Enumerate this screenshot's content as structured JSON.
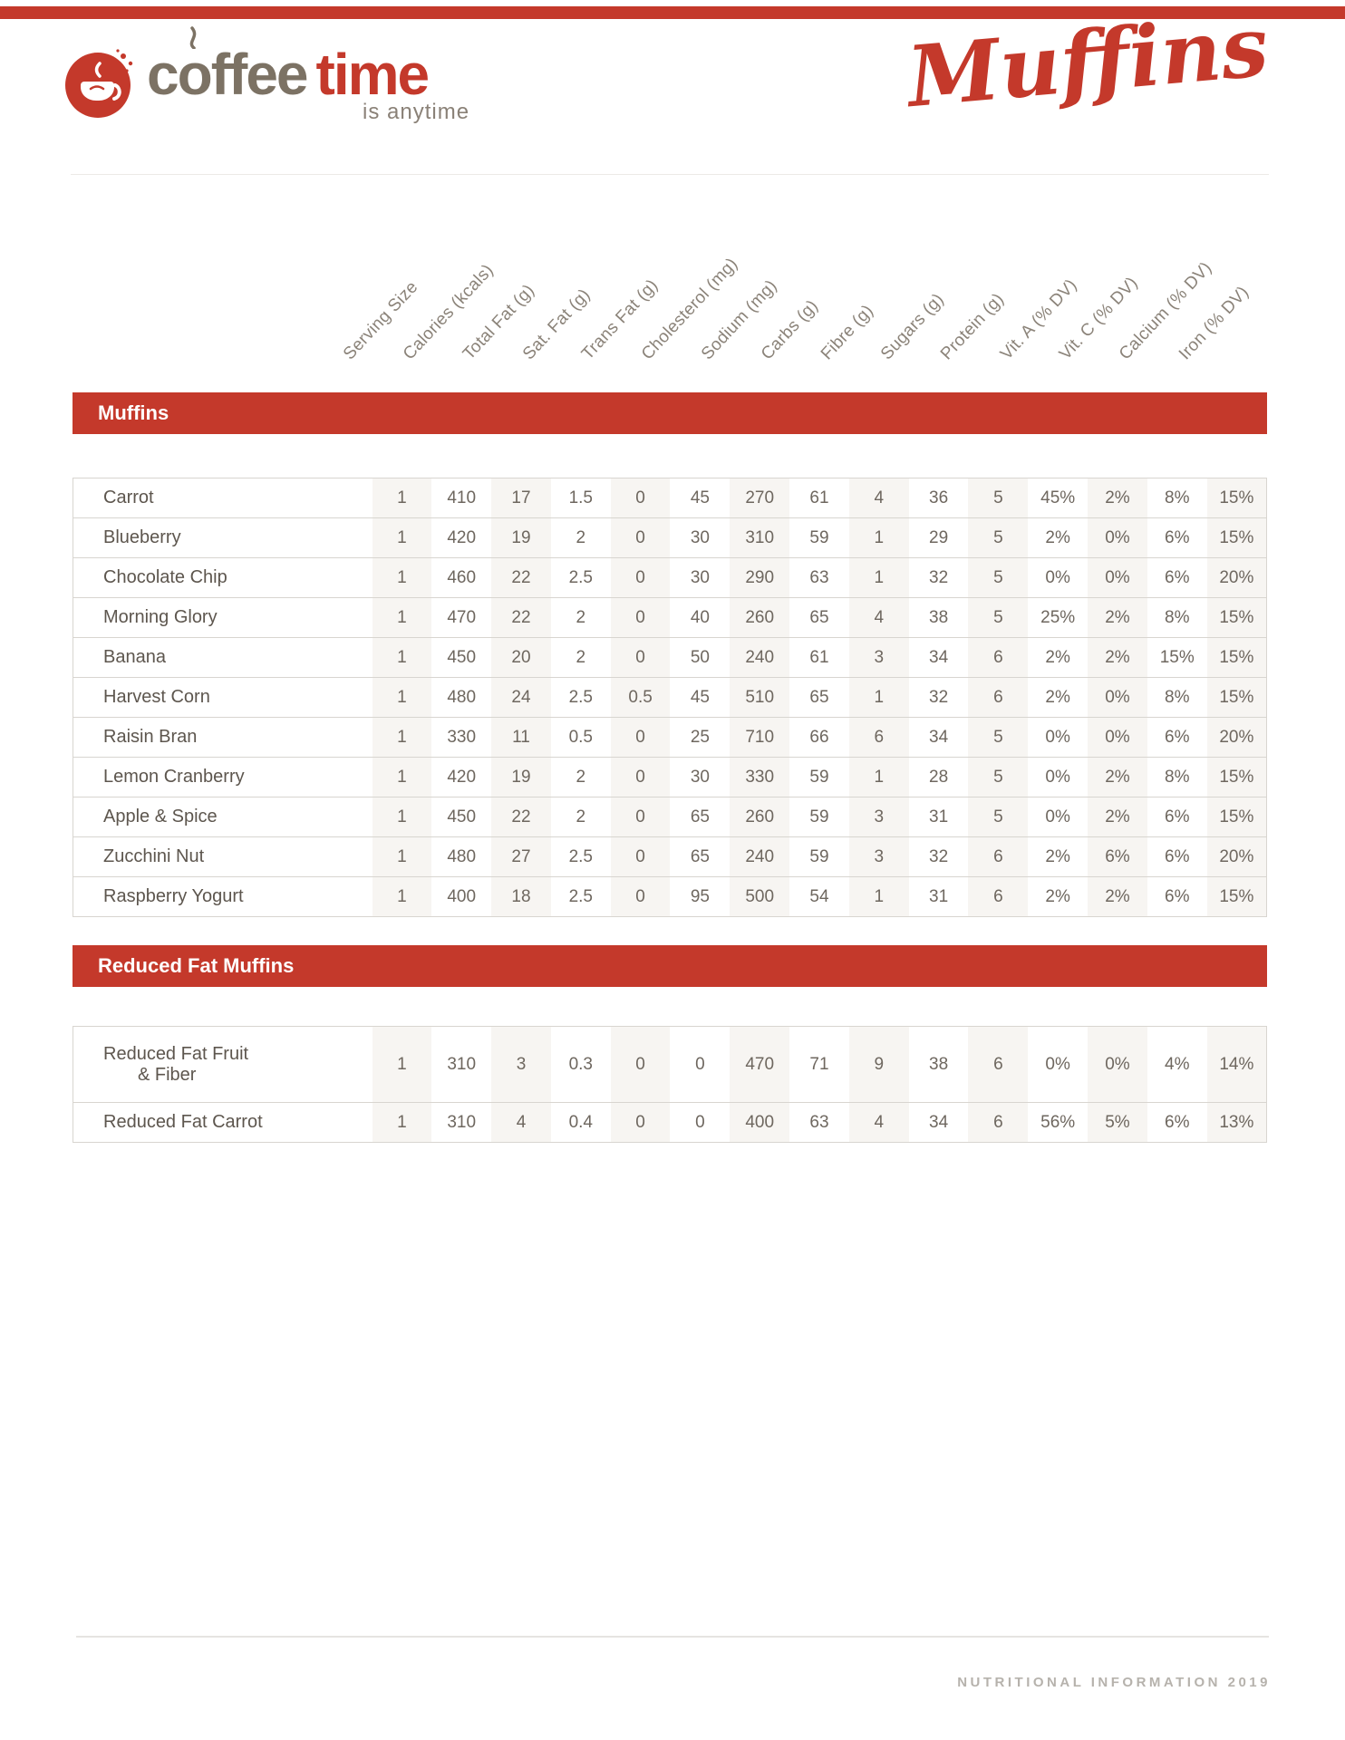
{
  "brand": {
    "logo_word_1": "coffee",
    "logo_word_2": "time",
    "tagline": "is anytime",
    "script_title": "Muffins"
  },
  "colors": {
    "accent_red": "#c4392b",
    "column_stripe": "#f7f5f2",
    "number_text": "#6e675f",
    "header_text": "#8b8379"
  },
  "columns": [
    "Serving Size",
    "Calories (kcals)",
    "Total Fat (g)",
    "Sat. Fat (g)",
    "Trans Fat (g)",
    "Cholesterol (mg)",
    "Sodium (mg)",
    "Carbs (g)",
    "Fibre (g)",
    "Sugars (g)",
    "Protein (g)",
    "Vit. A (% DV)",
    "Vit. C (% DV)",
    "Calcium (% DV)",
    "Iron (% DV)"
  ],
  "sections": [
    {
      "title": "Muffins",
      "rows": [
        {
          "name": "Carrot",
          "values": [
            "1",
            "410",
            "17",
            "1.5",
            "0",
            "45",
            "270",
            "61",
            "4",
            "36",
            "5",
            "45%",
            "2%",
            "8%",
            "15%"
          ]
        },
        {
          "name": "Blueberry",
          "values": [
            "1",
            "420",
            "19",
            "2",
            "0",
            "30",
            "310",
            "59",
            "1",
            "29",
            "5",
            "2%",
            "0%",
            "6%",
            "15%"
          ]
        },
        {
          "name": "Chocolate Chip",
          "values": [
            "1",
            "460",
            "22",
            "2.5",
            "0",
            "30",
            "290",
            "63",
            "1",
            "32",
            "5",
            "0%",
            "0%",
            "6%",
            "20%"
          ]
        },
        {
          "name": "Morning Glory",
          "values": [
            "1",
            "470",
            "22",
            "2",
            "0",
            "40",
            "260",
            "65",
            "4",
            "38",
            "5",
            "25%",
            "2%",
            "8%",
            "15%"
          ]
        },
        {
          "name": "Banana",
          "values": [
            "1",
            "450",
            "20",
            "2",
            "0",
            "50",
            "240",
            "61",
            "3",
            "34",
            "6",
            "2%",
            "2%",
            "15%",
            "15%"
          ]
        },
        {
          "name": "Harvest Corn",
          "values": [
            "1",
            "480",
            "24",
            "2.5",
            "0.5",
            "45",
            "510",
            "65",
            "1",
            "32",
            "6",
            "2%",
            "0%",
            "8%",
            "15%"
          ]
        },
        {
          "name": "Raisin Bran",
          "values": [
            "1",
            "330",
            "11",
            "0.5",
            "0",
            "25",
            "710",
            "66",
            "6",
            "34",
            "5",
            "0%",
            "0%",
            "6%",
            "20%"
          ]
        },
        {
          "name": "Lemon Cranberry",
          "values": [
            "1",
            "420",
            "19",
            "2",
            "0",
            "30",
            "330",
            "59",
            "1",
            "28",
            "5",
            "0%",
            "2%",
            "8%",
            "15%"
          ]
        },
        {
          "name": "Apple & Spice",
          "values": [
            "1",
            "450",
            "22",
            "2",
            "0",
            "65",
            "260",
            "59",
            "3",
            "31",
            "5",
            "0%",
            "2%",
            "6%",
            "15%"
          ]
        },
        {
          "name": "Zucchini Nut",
          "values": [
            "1",
            "480",
            "27",
            "2.5",
            "0",
            "65",
            "240",
            "59",
            "3",
            "32",
            "6",
            "2%",
            "6%",
            "6%",
            "20%"
          ]
        },
        {
          "name": "Raspberry Yogurt",
          "values": [
            "1",
            "400",
            "18",
            "2.5",
            "0",
            "95",
            "500",
            "54",
            "1",
            "31",
            "6",
            "2%",
            "2%",
            "6%",
            "15%"
          ]
        }
      ]
    },
    {
      "title": "Reduced Fat Muffins",
      "rows": [
        {
          "name": "Reduced Fat Fruit & Fiber",
          "name_lines": [
            "Reduced Fat Fruit",
            "& Fiber"
          ],
          "values": [
            "1",
            "310",
            "3",
            "0.3",
            "0",
            "0",
            "470",
            "71",
            "9",
            "38",
            "6",
            "0%",
            "0%",
            "4%",
            "14%"
          ]
        },
        {
          "name": "Reduced Fat Carrot",
          "values": [
            "1",
            "310",
            "4",
            "0.4",
            "0",
            "0",
            "400",
            "63",
            "4",
            "34",
            "6",
            "56%",
            "5%",
            "6%",
            "13%"
          ]
        }
      ]
    }
  ],
  "footer": {
    "label": "NUTRITIONAL INFORMATION 2019"
  }
}
